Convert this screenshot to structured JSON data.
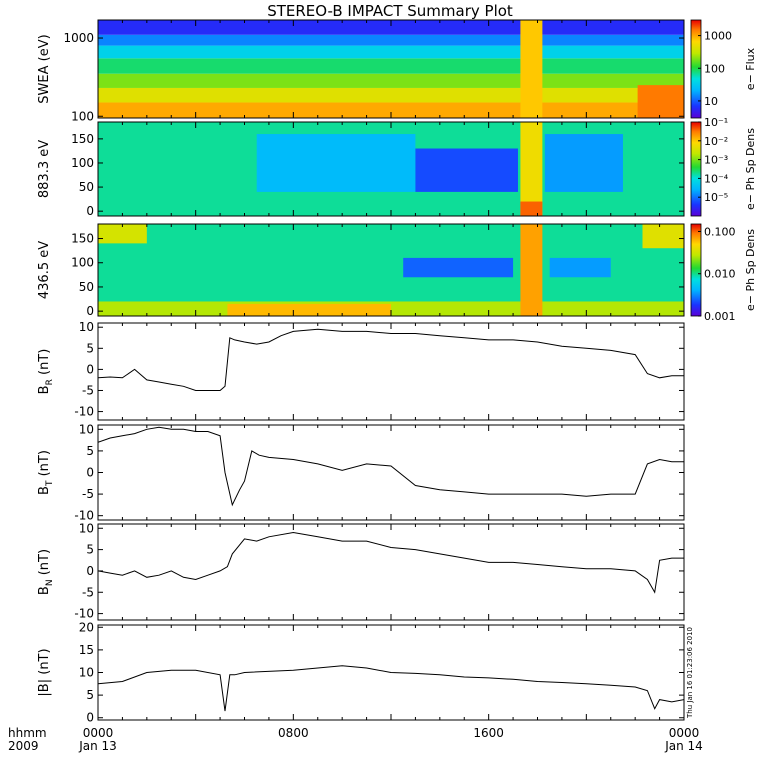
{
  "title": "STEREO-B IMPACT Summary Plot",
  "stamp": "Thu Jan 16 01:23:06 2010",
  "time_axis": {
    "label_top": "hhmm",
    "label_bottom": "2009",
    "ticks": [
      {
        "hour": 0,
        "top": "0000",
        "bottom": "Jan 13"
      },
      {
        "hour": 8,
        "top": "0800",
        "bottom": ""
      },
      {
        "hour": 16,
        "top": "1600",
        "bottom": ""
      },
      {
        "hour": 24,
        "top": "0000",
        "bottom": "Jan 14"
      }
    ],
    "range_hours": [
      0,
      24
    ]
  },
  "chart_data": [
    {
      "type": "heatmap",
      "ylabel": "SWEA (eV)",
      "yscale": "log",
      "ylim": [
        95,
        1700
      ],
      "yticks": [
        {
          "v": 100,
          "t": "100"
        },
        {
          "v": 1000,
          "t": "1000"
        }
      ],
      "colorbar": {
        "label": "e− Flux",
        "scale": "log",
        "range": [
          3,
          3000
        ],
        "ticks": [
          {
            "v": 10,
            "t": "10"
          },
          {
            "v": 100,
            "t": "100"
          },
          {
            "v": 1000,
            "t": "1000"
          }
        ]
      },
      "description_free": true,
      "bands": [
        {
          "hours": [
            0,
            24
          ],
          "y_low": 95,
          "y_high": 150,
          "level": 0.84
        },
        {
          "hours": [
            0,
            24
          ],
          "y_low": 150,
          "y_high": 230,
          "level": 0.72
        },
        {
          "hours": [
            0,
            24
          ],
          "y_low": 230,
          "y_high": 350,
          "level": 0.6
        },
        {
          "hours": [
            0,
            24
          ],
          "y_low": 350,
          "y_high": 550,
          "level": 0.48
        },
        {
          "hours": [
            0,
            24
          ],
          "y_low": 550,
          "y_high": 800,
          "level": 0.36
        },
        {
          "hours": [
            0,
            24
          ],
          "y_low": 800,
          "y_high": 1100,
          "level": 0.22
        },
        {
          "hours": [
            0,
            24
          ],
          "y_low": 1100,
          "y_high": 1700,
          "level": 0.1
        }
      ],
      "hot_columns": [
        {
          "hours": [
            17.3,
            18.2
          ],
          "level": 0.8
        },
        {
          "hours": [
            22.1,
            24.0
          ],
          "level": 0.9,
          "y_low": 95,
          "y_high": 250
        }
      ]
    },
    {
      "type": "heatmap",
      "ylabel": "883.3 eV",
      "ylim": [
        -10,
        185
      ],
      "yticks": [
        {
          "v": 0,
          "t": "0"
        },
        {
          "v": 50,
          "t": "50"
        },
        {
          "v": 100,
          "t": "100"
        },
        {
          "v": 150,
          "t": "150"
        }
      ],
      "colorbar": {
        "label": "e− Ph Sp Dens",
        "scale": "log",
        "range": [
          1e-06,
          0.1
        ],
        "ticks": [
          {
            "v": 1e-05,
            "t": "10⁻⁵"
          },
          {
            "v": 0.0001,
            "t": "10⁻⁴"
          },
          {
            "v": 0.001,
            "t": "10⁻³"
          },
          {
            "v": 0.01,
            "t": "10⁻²"
          },
          {
            "v": 0.1,
            "t": "10⁻¹"
          }
        ]
      },
      "background_level": 0.45,
      "patches": [
        {
          "hours": [
            6.5,
            13
          ],
          "y": [
            40,
            160
          ],
          "level": 0.3
        },
        {
          "hours": [
            13,
            17.2
          ],
          "y": [
            40,
            130
          ],
          "level": 0.15
        },
        {
          "hours": [
            18.3,
            21.5
          ],
          "y": [
            40,
            160
          ],
          "level": 0.25
        },
        {
          "hours": [
            17.3,
            18.2
          ],
          "y": [
            -10,
            185
          ],
          "level": 0.75
        },
        {
          "hours": [
            17.3,
            18.2
          ],
          "y": [
            -10,
            20
          ],
          "level": 0.92
        }
      ]
    },
    {
      "type": "heatmap",
      "ylabel": "436.5 eV",
      "ylim": [
        -10,
        180
      ],
      "yticks": [
        {
          "v": 0,
          "t": "0"
        },
        {
          "v": 50,
          "t": "50"
        },
        {
          "v": 100,
          "t": "100"
        },
        {
          "v": 150,
          "t": "150"
        }
      ],
      "colorbar": {
        "label": "e− Ph Sp Dens",
        "scale": "log",
        "range": [
          0.001,
          0.15
        ],
        "ticks": [
          {
            "v": 0.001,
            "t": "0.001"
          },
          {
            "v": 0.01,
            "t": "0.010"
          },
          {
            "v": 0.1,
            "t": "0.100"
          }
        ]
      },
      "background_level": 0.45,
      "patches": [
        {
          "hours": [
            0,
            2
          ],
          "y": [
            140,
            180
          ],
          "level": 0.7
        },
        {
          "hours": [
            22.3,
            24
          ],
          "y": [
            130,
            180
          ],
          "level": 0.72
        },
        {
          "hours": [
            0,
            24
          ],
          "y": [
            -10,
            20
          ],
          "level": 0.65
        },
        {
          "hours": [
            5.3,
            12
          ],
          "y": [
            -10,
            15
          ],
          "level": 0.82
        },
        {
          "hours": [
            12.5,
            17
          ],
          "y": [
            70,
            110
          ],
          "level": 0.18
        },
        {
          "hours": [
            18.5,
            21
          ],
          "y": [
            70,
            110
          ],
          "level": 0.25
        },
        {
          "hours": [
            17.3,
            18.2
          ],
          "y": [
            -10,
            180
          ],
          "level": 0.85
        }
      ]
    },
    {
      "type": "line",
      "ylabel": "B",
      "ysub": "R",
      "yunit": " (nT)",
      "ylim": [
        -12,
        11
      ],
      "yticks": [
        {
          "v": -10,
          "t": "-10"
        },
        {
          "v": -5,
          "t": "-5"
        },
        {
          "v": 0,
          "t": "0"
        },
        {
          "v": 5,
          "t": "5"
        },
        {
          "v": 10,
          "t": "10"
        }
      ],
      "x": [
        0,
        0.5,
        1,
        1.5,
        2,
        2.5,
        3,
        3.5,
        4,
        4.5,
        5,
        5.2,
        5.4,
        5.6,
        6,
        6.5,
        7,
        7.5,
        8,
        9,
        10,
        11,
        12,
        13,
        14,
        15,
        16,
        17,
        18,
        19,
        20,
        21,
        22,
        22.5,
        23,
        23.5,
        24
      ],
      "y": [
        -2,
        -1.8,
        -2,
        0,
        -2.5,
        -3,
        -3.5,
        -4,
        -5,
        -5,
        -5,
        -4,
        7.5,
        7,
        6.5,
        6,
        6.5,
        8,
        9,
        9.5,
        9,
        9,
        8.5,
        8.5,
        8,
        7.5,
        7,
        7,
        6.5,
        5.5,
        5,
        4.5,
        3.5,
        -1,
        -2,
        -1.5,
        -1.5
      ]
    },
    {
      "type": "line",
      "ylabel": "B",
      "ysub": "T",
      "yunit": " (nT)",
      "ylim": [
        -11,
        11
      ],
      "yticks": [
        {
          "v": -10,
          "t": "-10"
        },
        {
          "v": -5,
          "t": "-5"
        },
        {
          "v": 0,
          "t": "0"
        },
        {
          "v": 5,
          "t": "5"
        },
        {
          "v": 10,
          "t": "10"
        }
      ],
      "x": [
        0,
        0.5,
        1,
        1.5,
        2,
        2.5,
        3,
        3.5,
        4,
        4.5,
        5,
        5.2,
        5.5,
        5.8,
        6,
        6.3,
        6.6,
        7,
        8,
        9,
        10,
        11,
        12,
        13,
        14,
        15,
        16,
        17,
        18,
        19,
        20,
        21,
        22,
        22.5,
        23,
        23.5,
        24
      ],
      "y": [
        7,
        8,
        8.5,
        9,
        10,
        10.5,
        10,
        10,
        9.5,
        9.5,
        8.5,
        0,
        -7.5,
        -4,
        -2,
        5,
        4,
        3.5,
        3,
        2,
        0.5,
        2,
        1.5,
        -3,
        -4,
        -4.5,
        -5,
        -5,
        -5,
        -5,
        -5.5,
        -5,
        -5,
        2,
        3,
        2.5,
        2.5
      ]
    },
    {
      "type": "line",
      "ylabel": "B",
      "ysub": "N",
      "yunit": " (nT)",
      "ylim": [
        -11.5,
        11
      ],
      "yticks": [
        {
          "v": -10,
          "t": "-10"
        },
        {
          "v": -5,
          "t": "-5"
        },
        {
          "v": 0,
          "t": "0"
        },
        {
          "v": 5,
          "t": "5"
        },
        {
          "v": 10,
          "t": "10"
        }
      ],
      "x": [
        0,
        0.5,
        1,
        1.5,
        2,
        2.5,
        3,
        3.5,
        4,
        4.5,
        5,
        5.3,
        5.5,
        6,
        6.5,
        7,
        8,
        9,
        10,
        11,
        12,
        13,
        14,
        15,
        16,
        17,
        18,
        19,
        20,
        21,
        22,
        22.5,
        22.8,
        23,
        23.5,
        24
      ],
      "y": [
        0,
        -0.5,
        -1,
        0,
        -1.5,
        -1,
        0,
        -1.5,
        -2,
        -1,
        0,
        1,
        4,
        7.5,
        7,
        8,
        9,
        8,
        7,
        7,
        5.5,
        5,
        4,
        3,
        2,
        2,
        1.5,
        1,
        0.5,
        0.5,
        0,
        -2,
        -5,
        2.5,
        3,
        3
      ]
    },
    {
      "type": "line",
      "ylabel": "|B|",
      "ysub": "",
      "yunit": " (nT)",
      "ylim": [
        -0.5,
        20.5
      ],
      "yticks": [
        {
          "v": 0,
          "t": "0"
        },
        {
          "v": 5,
          "t": "5"
        },
        {
          "v": 10,
          "t": "10"
        },
        {
          "v": 15,
          "t": "15"
        },
        {
          "v": 20,
          "t": "20"
        }
      ],
      "x": [
        0,
        1,
        2,
        3,
        4,
        5,
        5.2,
        5.4,
        5.6,
        6,
        8,
        9,
        10,
        11,
        12,
        13,
        14,
        15,
        16,
        17,
        18,
        19,
        20,
        21,
        22,
        22.5,
        22.8,
        23,
        23.5,
        24
      ],
      "y": [
        7.5,
        8,
        10,
        10.5,
        10.5,
        9.5,
        1.5,
        9.5,
        9.5,
        10,
        10.5,
        11,
        11.5,
        11,
        10,
        9.8,
        9.5,
        9,
        8.8,
        8.5,
        8,
        7.8,
        7.5,
        7.2,
        6.8,
        6,
        2,
        4,
        3.5,
        4
      ]
    }
  ]
}
